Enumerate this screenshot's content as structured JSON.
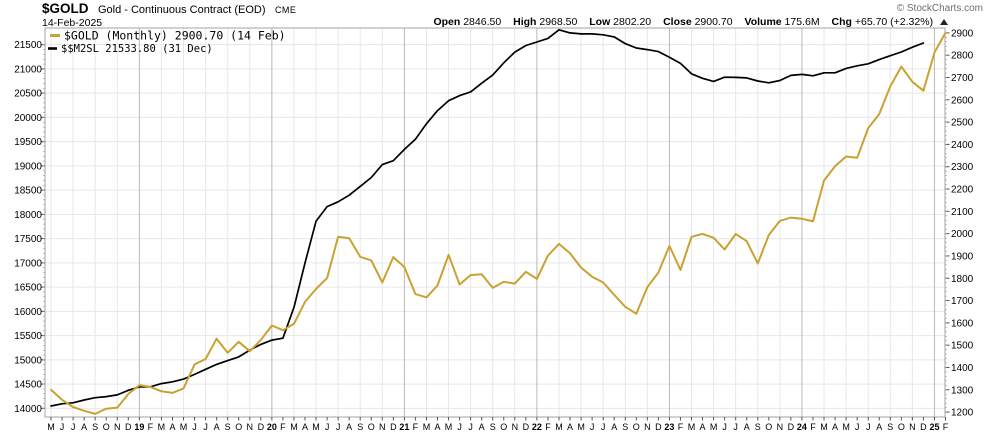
{
  "header": {
    "symbol": "$GOLD",
    "title": "Gold - Continuous Contract (EOD)",
    "exchange": "CME",
    "date": "14-Feb-2025",
    "copyright": "© StockCharts.com",
    "quote": [
      {
        "label": "Open",
        "value": "2846.50"
      },
      {
        "label": "High",
        "value": "2968.50"
      },
      {
        "label": "Low",
        "value": "2802.20"
      },
      {
        "label": "Close",
        "value": "2900.70"
      },
      {
        "label": "Volume",
        "value": "175.6M"
      },
      {
        "label": "Chg",
        "value": "+65.70 (+2.32%)"
      }
    ],
    "chg_direction": "up"
  },
  "legend": {
    "gold": "$GOLD (Monthly) 2900.70 (14 Feb)",
    "m2": "$$M2SL 21533.80 (31 Dec)"
  },
  "colors": {
    "gold_line": "#c9a232",
    "m2_line": "#000000",
    "grid_light": "#e7e7e7",
    "grid_year": "#b9b9b9",
    "plot_border": "#a3a3a3",
    "tick": "#555555",
    "copyright_gray": "#6e6e6e"
  },
  "chart_data": {
    "type": "line",
    "title": "$GOLD Gold - Continuous Contract (EOD) CME, monthly, with $$M2SL overlay",
    "x_description": "Monthly, May 2018 - Feb 2025; first letter of month, bold number = January of year",
    "x_tick_labels": [
      "M",
      "J",
      "J",
      "A",
      "S",
      "O",
      "N",
      "D",
      "19",
      "F",
      "M",
      "A",
      "M",
      "J",
      "J",
      "A",
      "S",
      "O",
      "N",
      "D",
      "20",
      "F",
      "M",
      "A",
      "M",
      "J",
      "J",
      "A",
      "S",
      "O",
      "N",
      "D",
      "21",
      "F",
      "M",
      "A",
      "M",
      "J",
      "J",
      "A",
      "S",
      "O",
      "N",
      "D",
      "22",
      "F",
      "M",
      "A",
      "M",
      "J",
      "J",
      "A",
      "S",
      "O",
      "N",
      "D",
      "23",
      "F",
      "M",
      "A",
      "M",
      "J",
      "J",
      "A",
      "S",
      "O",
      "N",
      "D",
      "24",
      "F",
      "M",
      "A",
      "M",
      "J",
      "J",
      "A",
      "S",
      "O",
      "N",
      "D",
      "25",
      "F"
    ],
    "grid": {
      "horizontal": "left-axis ticks",
      "vertical": "every 2 months, darker at January",
      "legend_position": "top-left"
    },
    "left_axis": {
      "series": "$$M2SL",
      "min": 13821,
      "max": 21844,
      "ticks": [
        14000,
        14500,
        15000,
        15500,
        16000,
        16500,
        17000,
        17500,
        18000,
        18500,
        19000,
        19500,
        20000,
        20500,
        21000,
        21500
      ],
      "minor_step": 100
    },
    "right_axis": {
      "series": "$GOLD",
      "min": 1178,
      "max": 2922,
      "ticks": [
        1200,
        1300,
        1400,
        1500,
        1600,
        1700,
        1800,
        1900,
        2000,
        2100,
        2200,
        2300,
        2400,
        2500,
        2600,
        2700,
        2800,
        2900
      ],
      "minor_step": 20
    },
    "series": [
      {
        "name": "$GOLD",
        "axis": "right",
        "color": "#c9a232",
        "last_value": 2900.7,
        "last_date": "14 Feb",
        "values": [
          1300,
          1255,
          1223,
          1206,
          1192,
          1215,
          1220,
          1281,
          1320,
          1313,
          1293,
          1286,
          1306,
          1414,
          1438,
          1529,
          1466,
          1515,
          1473,
          1523,
          1588,
          1567,
          1596,
          1694,
          1752,
          1801,
          1986,
          1979,
          1896,
          1880,
          1781,
          1895,
          1850,
          1729,
          1714,
          1768,
          1905,
          1772,
          1814,
          1818,
          1757,
          1784,
          1776,
          1829,
          1797,
          1901,
          1954,
          1912,
          1848,
          1807,
          1781,
          1726,
          1672,
          1641,
          1760,
          1826,
          1945,
          1837,
          1986,
          1999,
          1982,
          1929,
          1999,
          1966,
          1866,
          1994,
          2057,
          2072,
          2067,
          2055,
          2238,
          2303,
          2346,
          2340,
          2473,
          2536,
          2660,
          2749,
          2681,
          2641,
          2812,
          2901
        ]
      },
      {
        "name": "$$M2SL",
        "axis": "left",
        "color": "#000000",
        "last_value": 21533.8,
        "last_date": "31 Dec",
        "values": [
          14047,
          14094,
          14114,
          14172,
          14220,
          14241,
          14277,
          14371,
          14442,
          14444,
          14509,
          14547,
          14602,
          14699,
          14805,
          14905,
          14984,
          15060,
          15200,
          15319,
          15408,
          15447,
          16084,
          16997,
          17857,
          18160,
          18260,
          18395,
          18577,
          18760,
          19027,
          19107,
          19340,
          19550,
          19870,
          20140,
          20344,
          20450,
          20527,
          20705,
          20872,
          21127,
          21346,
          21483,
          21556,
          21629,
          21806,
          21742,
          21723,
          21723,
          21703,
          21660,
          21522,
          21432,
          21398,
          21358,
          21242,
          21113,
          20899,
          20807,
          20742,
          20830,
          20826,
          20814,
          20751,
          20713,
          20761,
          20866,
          20886,
          20858,
          20919,
          20921,
          21010,
          21064,
          21106,
          21193,
          21273,
          21348,
          21448,
          21533.8
        ]
      }
    ]
  }
}
